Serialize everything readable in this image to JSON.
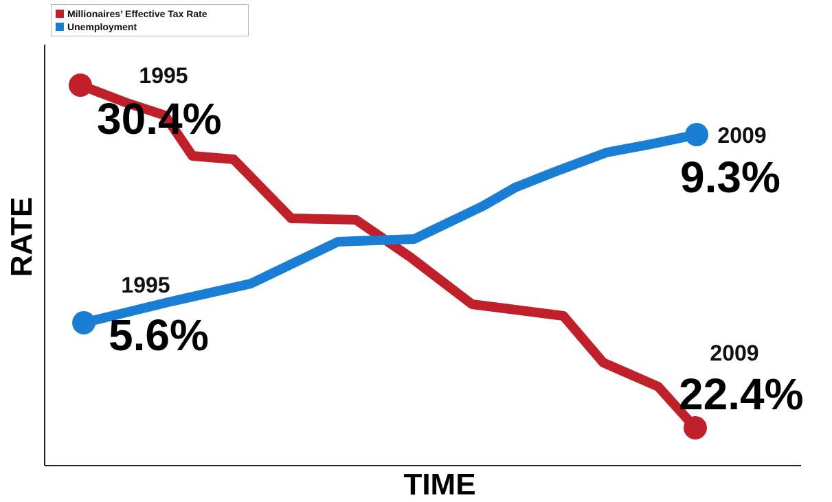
{
  "chart_data": {
    "type": "line",
    "xlabel": "TIME",
    "ylabel": "RATE",
    "x": [
      1995,
      2009
    ],
    "series": [
      {
        "name": "Millionaires’ Effective Tax Rate",
        "color": "#c0202a",
        "start": {
          "year": "1995",
          "label": "30.4%",
          "value": 30.4
        },
        "end": {
          "year": "2009",
          "label": "22.4%",
          "value": 22.4
        }
      },
      {
        "name": "Unemployment",
        "color": "#1a7fd4",
        "start": {
          "year": "1995",
          "label": "5.6%",
          "value": 5.6
        },
        "end": {
          "year": "2009",
          "label": "9.3%",
          "value": 9.3
        }
      }
    ],
    "legend_position": "top-left",
    "grid": false
  }
}
